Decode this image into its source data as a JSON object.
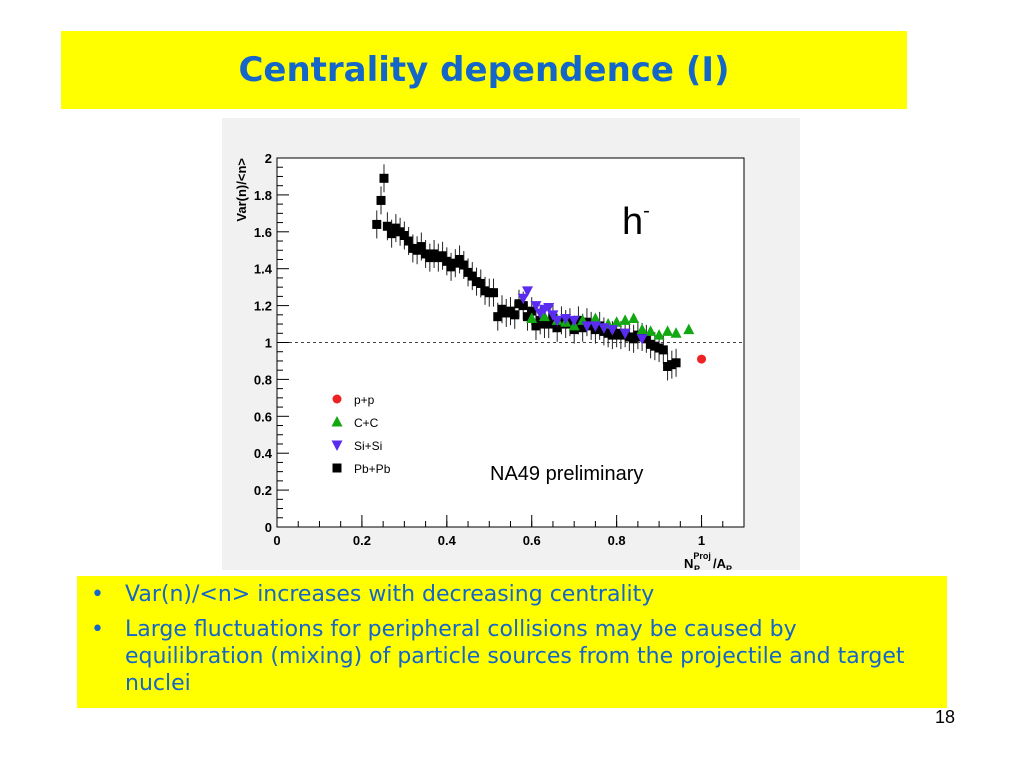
{
  "slide": {
    "title": "Centrality dependence (I)",
    "page_number": "18",
    "bullets": [
      "Var(n)/<n> increases with decreasing centrality",
      "Large fluctuations for peripheral collisions may be caused by equilibration (mixing) of particle sources from the projectile and target nuclei"
    ],
    "colors": {
      "title": "#1466c8",
      "banner": "#ffff00",
      "bullet_text": "#1466c8"
    }
  },
  "chart_data": {
    "type": "scatter",
    "title": "",
    "ylabel": "Var(n)/<n>",
    "xlabel_main": "N",
    "xlabel_sub": "P",
    "xlabel_sup": "Proj",
    "xlabel_rest": "/A",
    "xlabel_rest_sub": "P",
    "particle_label": "h",
    "particle_charge": "-",
    "annotation": "NA49 preliminary",
    "xlim": [
      0,
      1.1
    ],
    "ylim": [
      0,
      2
    ],
    "xticks": [
      0,
      0.2,
      0.4,
      0.6,
      0.8,
      1
    ],
    "xtick_labels": [
      "0",
      "0.2",
      "0.4",
      "0.6",
      "0.8",
      "1"
    ],
    "yticks": [
      0,
      0.2,
      0.4,
      0.6,
      0.8,
      1,
      1.2,
      1.4,
      1.6,
      1.8,
      2
    ],
    "ytick_labels": [
      "0",
      "0.2",
      "0.4",
      "0.6",
      "0.8",
      "1",
      "1.2",
      "1.4",
      "1.6",
      "1.8",
      "2"
    ],
    "reference_line": 1,
    "legend_position": "left-center",
    "series": [
      {
        "name": "p+p",
        "marker": "circle",
        "color": "#ee2222",
        "points": [
          [
            1.0,
            0.91
          ]
        ]
      },
      {
        "name": "C+C",
        "marker": "triangle-up",
        "color": "#11a811",
        "points": [
          [
            0.6,
            1.13
          ],
          [
            0.63,
            1.14
          ],
          [
            0.66,
            1.12
          ],
          [
            0.68,
            1.11
          ],
          [
            0.7,
            1.09
          ],
          [
            0.72,
            1.12
          ],
          [
            0.75,
            1.13
          ],
          [
            0.78,
            1.1
          ],
          [
            0.8,
            1.11
          ],
          [
            0.82,
            1.12
          ],
          [
            0.84,
            1.13
          ],
          [
            0.86,
            1.07
          ],
          [
            0.88,
            1.06
          ],
          [
            0.9,
            1.04
          ],
          [
            0.92,
            1.06
          ],
          [
            0.94,
            1.05
          ],
          [
            0.97,
            1.07
          ]
        ]
      },
      {
        "name": "Si+Si",
        "marker": "triangle-down",
        "color": "#5a2cf0",
        "points": [
          [
            0.58,
            1.24
          ],
          [
            0.59,
            1.28
          ],
          [
            0.61,
            1.2
          ],
          [
            0.62,
            1.16
          ],
          [
            0.63,
            1.18
          ],
          [
            0.64,
            1.19
          ],
          [
            0.65,
            1.15
          ],
          [
            0.66,
            1.12
          ],
          [
            0.68,
            1.13
          ],
          [
            0.7,
            1.12
          ],
          [
            0.73,
            1.09
          ],
          [
            0.75,
            1.09
          ],
          [
            0.77,
            1.08
          ],
          [
            0.79,
            1.07
          ],
          [
            0.82,
            1.05
          ],
          [
            0.86,
            1.02
          ]
        ]
      },
      {
        "name": "Pb+Pb",
        "marker": "square",
        "color": "#000000",
        "points": [
          [
            0.235,
            1.64
          ],
          [
            0.245,
            1.77
          ],
          [
            0.252,
            1.89
          ],
          [
            0.26,
            1.63
          ],
          [
            0.27,
            1.59
          ],
          [
            0.28,
            1.62
          ],
          [
            0.29,
            1.6
          ],
          [
            0.3,
            1.58
          ],
          [
            0.31,
            1.55
          ],
          [
            0.32,
            1.51
          ],
          [
            0.33,
            1.5
          ],
          [
            0.34,
            1.52
          ],
          [
            0.35,
            1.48
          ],
          [
            0.36,
            1.46
          ],
          [
            0.37,
            1.48
          ],
          [
            0.38,
            1.46
          ],
          [
            0.39,
            1.47
          ],
          [
            0.4,
            1.44
          ],
          [
            0.41,
            1.41
          ],
          [
            0.42,
            1.43
          ],
          [
            0.43,
            1.45
          ],
          [
            0.44,
            1.42
          ],
          [
            0.45,
            1.38
          ],
          [
            0.46,
            1.36
          ],
          [
            0.47,
            1.33
          ],
          [
            0.48,
            1.32
          ],
          [
            0.49,
            1.28
          ],
          [
            0.5,
            1.27
          ],
          [
            0.51,
            1.27
          ],
          [
            0.52,
            1.14
          ],
          [
            0.53,
            1.18
          ],
          [
            0.54,
            1.16
          ],
          [
            0.55,
            1.17
          ],
          [
            0.56,
            1.15
          ],
          [
            0.57,
            1.21
          ],
          [
            0.58,
            1.2
          ],
          [
            0.59,
            1.14
          ],
          [
            0.6,
            1.17
          ],
          [
            0.61,
            1.09
          ],
          [
            0.62,
            1.12
          ],
          [
            0.63,
            1.1
          ],
          [
            0.64,
            1.1
          ],
          [
            0.65,
            1.13
          ],
          [
            0.66,
            1.08
          ],
          [
            0.67,
            1.12
          ],
          [
            0.68,
            1.1
          ],
          [
            0.69,
            1.11
          ],
          [
            0.7,
            1.07
          ],
          [
            0.71,
            1.12
          ],
          [
            0.72,
            1.08
          ],
          [
            0.73,
            1.11
          ],
          [
            0.74,
            1.09
          ],
          [
            0.75,
            1.07
          ],
          [
            0.76,
            1.09
          ],
          [
            0.77,
            1.06
          ],
          [
            0.78,
            1.05
          ],
          [
            0.79,
            1.04
          ],
          [
            0.8,
            1.05
          ],
          [
            0.81,
            1.04
          ],
          [
            0.82,
            1.05
          ],
          [
            0.83,
            1.03
          ],
          [
            0.84,
            1.02
          ],
          [
            0.85,
            1.04
          ],
          [
            0.86,
            1.03
          ],
          [
            0.87,
            1.02
          ],
          [
            0.88,
            0.99
          ],
          [
            0.89,
            0.98
          ],
          [
            0.9,
            0.97
          ],
          [
            0.91,
            0.96
          ],
          [
            0.92,
            0.87
          ],
          [
            0.93,
            0.88
          ],
          [
            0.94,
            0.89
          ]
        ]
      }
    ]
  }
}
